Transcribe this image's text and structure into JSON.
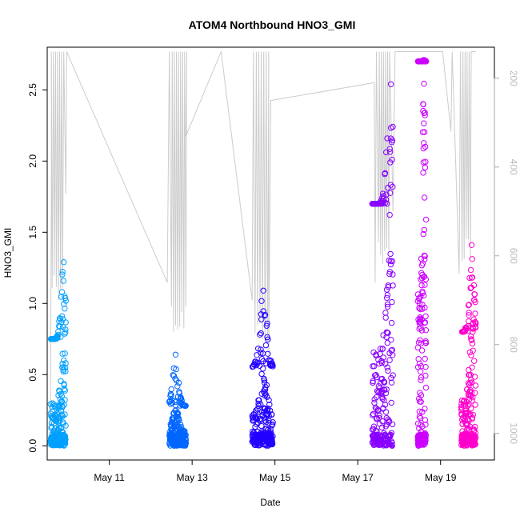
{
  "chart_data": {
    "type": "scatter",
    "title": "ATOM4 Northbound HNO3_GMI",
    "xlabel": "Date",
    "ylabel": "HNO3_GMI",
    "x_ticks": [
      "May 11",
      "May 13",
      "May 15",
      "May 17",
      "May 19"
    ],
    "x_tick_days": [
      11,
      13,
      15,
      17,
      19
    ],
    "xlim": [
      9.5,
      20.3
    ],
    "ylim": [
      -0.1,
      2.8
    ],
    "y_ticks": [
      0.0,
      0.5,
      1.0,
      1.5,
      2.0,
      2.5
    ],
    "y2_ticks": [
      200,
      400,
      600,
      800,
      1000
    ],
    "y2lim": [
      1060,
      130
    ],
    "grid": false,
    "legend": "none",
    "pressure_color": "#cccccc",
    "segments": [
      {
        "color": "#00a0ff",
        "x_start": 9.58,
        "x_end": 9.95,
        "y_min": 0.0,
        "y_max": 1.29,
        "dense_max": 0.75,
        "peak_x": 9.9
      },
      {
        "color": "#0066ff",
        "x_start": 12.45,
        "x_end": 12.85,
        "y_min": 0.0,
        "y_max": 0.64,
        "dense_max": 0.28,
        "peak_x": 12.6
      },
      {
        "color": "#2200ff",
        "x_start": 14.45,
        "x_end": 14.95,
        "y_min": 0.0,
        "y_max": 1.09,
        "dense_max": 0.55,
        "peak_x": 14.72
      },
      {
        "color": "#8800ff",
        "x_start": 17.35,
        "x_end": 17.85,
        "y_min": 0.0,
        "y_max": 2.54,
        "dense_max": 1.7,
        "peak_x": 17.8
      },
      {
        "color": "#cc00ff",
        "x_start": 18.45,
        "x_end": 18.65,
        "y_min": 0.0,
        "y_max": 2.71,
        "dense_max": 2.7,
        "peak_x": 18.6
      },
      {
        "color": "#ff00cc",
        "x_start": 19.5,
        "x_end": 19.85,
        "y_min": 0.0,
        "y_max": 1.41,
        "dense_max": 0.8,
        "peak_x": 19.75
      }
    ]
  }
}
